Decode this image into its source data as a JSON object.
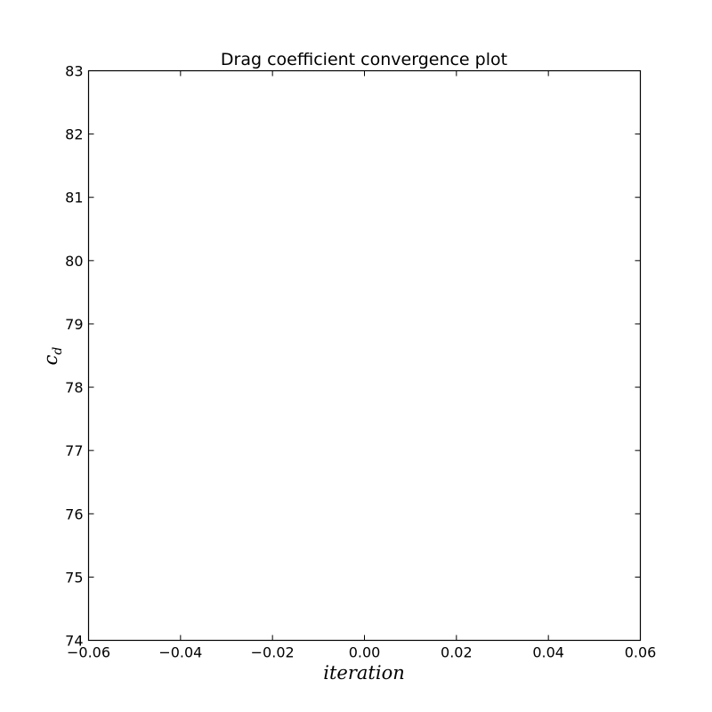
{
  "chart_data": {
    "type": "line",
    "title": "Drag coefficient convergence plot",
    "xlabel": "iteration",
    "ylabel": "c",
    "ylabel_subscript": "d",
    "xlim": [
      -0.06,
      0.06
    ],
    "ylim": [
      74,
      83
    ],
    "x_ticks": [
      -0.06,
      -0.04,
      -0.02,
      0.0,
      0.02,
      0.04,
      0.06
    ],
    "x_tick_labels": [
      "−0.06",
      "−0.04",
      "−0.02",
      "0.00",
      "0.02",
      "0.04",
      "0.06"
    ],
    "y_ticks": [
      74,
      75,
      76,
      77,
      78,
      79,
      80,
      81,
      82,
      83
    ],
    "y_tick_labels": [
      "74",
      "75",
      "76",
      "77",
      "78",
      "79",
      "80",
      "81",
      "82",
      "83"
    ],
    "series": [],
    "grid": false,
    "legend": "none"
  }
}
